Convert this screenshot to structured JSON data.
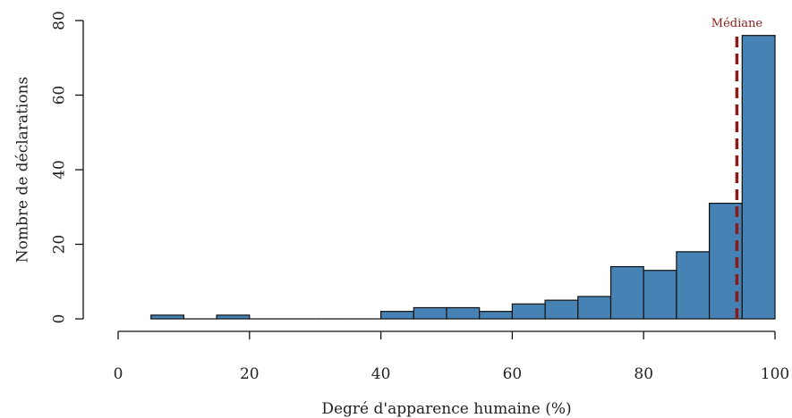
{
  "chart_data": {
    "type": "bar",
    "title": "",
    "xlabel": "Degré d'apparence humaine (%)",
    "ylabel": "Nombre de déclarations",
    "xlim": [
      0,
      100
    ],
    "ylim": [
      0,
      80
    ],
    "x_ticks": [
      "0",
      "20",
      "40",
      "60",
      "80",
      "100"
    ],
    "y_ticks": [
      "0",
      "20",
      "40",
      "60",
      "80"
    ],
    "bin_width": 5,
    "bins": [
      {
        "start": 5,
        "end": 10,
        "count": 1
      },
      {
        "start": 10,
        "end": 15,
        "count": 0
      },
      {
        "start": 15,
        "end": 20,
        "count": 1
      },
      {
        "start": 20,
        "end": 25,
        "count": 0
      },
      {
        "start": 25,
        "end": 30,
        "count": 0
      },
      {
        "start": 30,
        "end": 35,
        "count": 0
      },
      {
        "start": 35,
        "end": 40,
        "count": 0
      },
      {
        "start": 40,
        "end": 45,
        "count": 2
      },
      {
        "start": 45,
        "end": 50,
        "count": 3
      },
      {
        "start": 50,
        "end": 55,
        "count": 3
      },
      {
        "start": 55,
        "end": 60,
        "count": 2
      },
      {
        "start": 60,
        "end": 65,
        "count": 4
      },
      {
        "start": 65,
        "end": 70,
        "count": 5
      },
      {
        "start": 70,
        "end": 75,
        "count": 6
      },
      {
        "start": 75,
        "end": 80,
        "count": 14
      },
      {
        "start": 80,
        "end": 85,
        "count": 13
      },
      {
        "start": 85,
        "end": 90,
        "count": 18
      },
      {
        "start": 90,
        "end": 95,
        "count": 31
      },
      {
        "start": 95,
        "end": 100,
        "count": 76
      }
    ],
    "median": {
      "label": "Médiane",
      "value": 94.2
    },
    "colors": {
      "bar": "#4682b4",
      "bar_edge": "#111111",
      "median": "#8b1a1a"
    },
    "grid": false,
    "legend": "none"
  }
}
